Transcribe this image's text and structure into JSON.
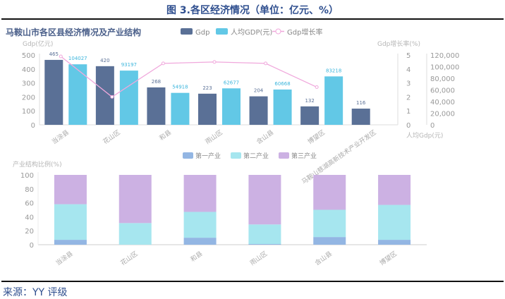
{
  "figure_title": "图 3.各区经济情况（单位：亿元、%）",
  "source": "来源：YY 评级",
  "chart_data": [
    {
      "type": "bar",
      "title": "马鞍山市各区县经济情况及产业结构",
      "categories": [
        "当涂县",
        "花山区",
        "和县",
        "雨山区",
        "含山县",
        "博望区",
        "马鞍山慈湖高新技术产业开发区"
      ],
      "left_axis_label": "Gdp(亿元)",
      "right_axis_label": "Gdp增长率(%)",
      "right2_axis_label": "人均Gdp(元)",
      "left_ticks": [
        "0",
        "100",
        "200",
        "300",
        "400",
        "500"
      ],
      "right_ticks": [
        "0",
        "1",
        "2",
        "3",
        "4",
        "5"
      ],
      "right2_ticks": [
        "0",
        "20,000",
        "40,000",
        "60,000",
        "80,000",
        "100,000",
        "120,000"
      ],
      "ylim": [
        0,
        500
      ],
      "y2lim": [
        0,
        5
      ],
      "y3lim": [
        0,
        120000
      ],
      "legend_position": "top",
      "series": [
        {
          "name": "Gdp",
          "kind": "bar",
          "axis": "left",
          "color": "#5a7096",
          "values": [
            465,
            420,
            268,
            223,
            204,
            132,
            116
          ],
          "labels": [
            "465",
            "420",
            "268",
            "223",
            "204",
            "132",
            "116"
          ]
        },
        {
          "name": "人均GDP(元)",
          "kind": "bar",
          "axis": "right2",
          "color": "#62c8e6",
          "values": [
            104027,
            93197,
            54918,
            62677,
            60668,
            83218,
            null
          ],
          "labels": [
            "104027",
            "93197",
            "54918",
            "62677",
            "60668",
            "83218",
            ""
          ]
        },
        {
          "name": "Gdp增长率",
          "kind": "line",
          "axis": "right",
          "color": "#f0a8dc",
          "values": [
            4.9,
            2.0,
            4.4,
            4.5,
            4.4,
            2.7,
            null
          ]
        }
      ]
    },
    {
      "type": "bar",
      "stacked": true,
      "ylabel": "产业结构比例(%)",
      "categories": [
        "当涂县",
        "花山区",
        "和县",
        "雨山区",
        "含山县",
        "博望区"
      ],
      "ticks": [
        "0",
        "20",
        "40",
        "60",
        "80",
        "100"
      ],
      "ylim": [
        0,
        100
      ],
      "legend_position": "top",
      "series": [
        {
          "name": "第一产业",
          "color": "#93b6e3",
          "values": [
            7,
            0,
            10,
            1,
            11,
            7
          ]
        },
        {
          "name": "第二产业",
          "color": "#a6e6ef",
          "values": [
            51,
            31,
            37,
            28,
            39,
            50
          ]
        },
        {
          "name": "第三产业",
          "color": "#ccb1e3",
          "values": [
            42,
            69,
            53,
            71,
            50,
            43
          ]
        }
      ]
    }
  ]
}
